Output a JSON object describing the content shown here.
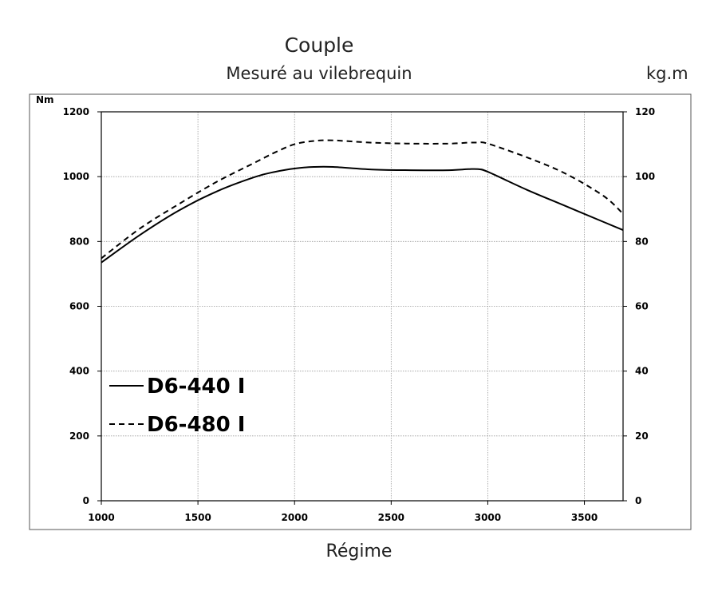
{
  "chart_data": {
    "type": "line",
    "title": "Couple",
    "subtitle": "Mesuré au vilebrequin",
    "xlabel": "Régime",
    "ylabel": "Nm",
    "y2label": "kg.m",
    "xlim": [
      1000,
      3700
    ],
    "ylim": [
      0,
      1200
    ],
    "y2lim": [
      0,
      120
    ],
    "x_ticks": [
      1000,
      1500,
      2000,
      2500,
      3000,
      3500
    ],
    "y_ticks": [
      0,
      200,
      400,
      600,
      800,
      1000,
      1200
    ],
    "y2_ticks": [
      0,
      20,
      40,
      60,
      80,
      100,
      120
    ],
    "grid": true,
    "legend_position": "bottom-left",
    "series": [
      {
        "name": "D6-440 I",
        "style": "solid",
        "x": [
          1000,
          1200,
          1400,
          1600,
          1800,
          1900,
          2000,
          2100,
          2200,
          2400,
          2600,
          2800,
          2900,
          2950,
          3000,
          3200,
          3400,
          3600,
          3700
        ],
        "y": [
          735,
          820,
          895,
          955,
          1000,
          1015,
          1025,
          1030,
          1030,
          1022,
          1020,
          1020,
          1023,
          1023,
          1015,
          960,
          910,
          860,
          835
        ]
      },
      {
        "name": "D6-480 I",
        "style": "dashed",
        "x": [
          1000,
          1200,
          1400,
          1600,
          1800,
          1900,
          2000,
          2100,
          2200,
          2400,
          2600,
          2800,
          2900,
          2950,
          3000,
          3200,
          3400,
          3600,
          3700
        ],
        "y": [
          748,
          840,
          915,
          985,
          1045,
          1075,
          1100,
          1110,
          1112,
          1105,
          1102,
          1102,
          1105,
          1105,
          1102,
          1060,
          1010,
          940,
          885
        ]
      }
    ]
  }
}
